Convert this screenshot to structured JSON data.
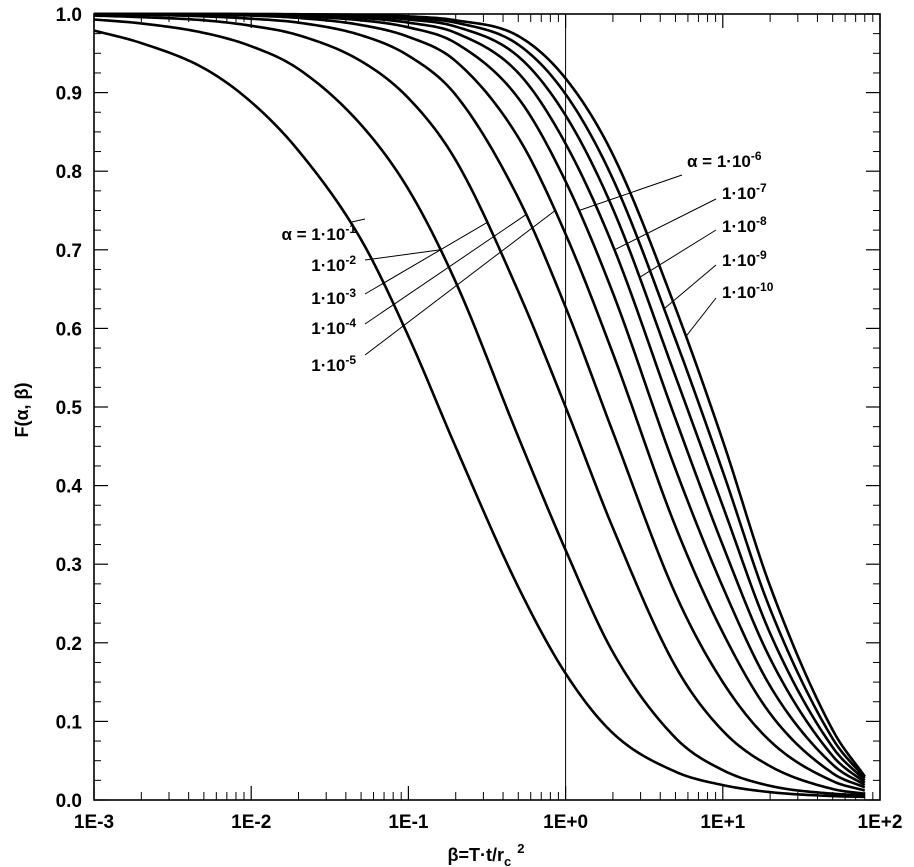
{
  "chart_data": {
    "type": "line",
    "xlabel": "β=T·t/r",
    "xlabel_sub": "c",
    "xlabel_sup": "2",
    "ylabel": "F(α, β)",
    "xscale": "log",
    "xlim": [
      0.001,
      100
    ],
    "ylim": [
      0.0,
      1.0
    ],
    "grid": false,
    "reference_line_x": 1,
    "x_ticks": [
      {
        "value": 0.001,
        "label": "1E-3"
      },
      {
        "value": 0.01,
        "label": "1E-2"
      },
      {
        "value": 0.1,
        "label": "1E-1"
      },
      {
        "value": 1,
        "label": "1E+0"
      },
      {
        "value": 10,
        "label": "1E+1"
      },
      {
        "value": 100,
        "label": "1E+2"
      }
    ],
    "y_ticks": [
      {
        "value": 0.0,
        "label": "0.0"
      },
      {
        "value": 0.1,
        "label": "0.1"
      },
      {
        "value": 0.2,
        "label": "0.2"
      },
      {
        "value": 0.3,
        "label": "0.3"
      },
      {
        "value": 0.4,
        "label": "0.4"
      },
      {
        "value": 0.5,
        "label": "0.5"
      },
      {
        "value": 0.6,
        "label": "0.6"
      },
      {
        "value": 0.7,
        "label": "0.7"
      },
      {
        "value": 0.8,
        "label": "0.8"
      },
      {
        "value": 0.9,
        "label": "0.9"
      },
      {
        "value": 1.0,
        "label": "1.0"
      }
    ],
    "x": [
      0.001,
      0.002,
      0.005,
      0.01,
      0.02,
      0.05,
      0.1,
      0.2,
      0.5,
      1,
      2,
      5,
      10,
      20,
      50,
      80
    ],
    "series": [
      {
        "prefix": "α = ",
        "base": "1·10",
        "exp": "-1",
        "values": [
          0.979,
          0.963,
          0.931,
          0.888,
          0.826,
          0.713,
          0.59,
          0.449,
          0.271,
          0.161,
          0.085,
          0.036,
          0.019,
          0.01,
          0.005,
          0.004
        ]
      },
      {
        "prefix": "",
        "base": "1·10",
        "exp": "-2",
        "values": [
          0.993,
          0.988,
          0.976,
          0.959,
          0.93,
          0.859,
          0.777,
          0.659,
          0.462,
          0.318,
          0.188,
          0.079,
          0.038,
          0.018,
          0.008,
          0.006
        ]
      },
      {
        "prefix": "",
        "base": "1·10",
        "exp": "-3",
        "values": [
          0.998,
          0.996,
          0.992,
          0.985,
          0.973,
          0.94,
          0.893,
          0.814,
          0.647,
          0.5,
          0.346,
          0.17,
          0.088,
          0.043,
          0.014,
          0.008
        ]
      },
      {
        "prefix": "",
        "base": "1·10",
        "exp": "-4",
        "values": [
          0.9995,
          0.999,
          0.997,
          0.994,
          0.989,
          0.973,
          0.947,
          0.897,
          0.766,
          0.627,
          0.468,
          0.262,
          0.15,
          0.075,
          0.024,
          0.012
        ]
      },
      {
        "prefix": "",
        "base": "1·10",
        "exp": "-5",
        "values": [
          1.0,
          0.9997,
          0.999,
          0.998,
          0.995,
          0.986,
          0.971,
          0.94,
          0.843,
          0.72,
          0.568,
          0.348,
          0.213,
          0.11,
          0.034,
          0.016
        ]
      },
      {
        "prefix": "α = ",
        "base": "1·10",
        "exp": "-6",
        "values": [
          1.0,
          1.0,
          0.9996,
          0.999,
          0.997,
          0.992,
          0.983,
          0.963,
          0.893,
          0.787,
          0.645,
          0.421,
          0.271,
          0.145,
          0.045,
          0.019
        ]
      },
      {
        "prefix": "",
        "base": "1·10",
        "exp": "-7",
        "values": [
          1.0,
          1.0,
          0.9998,
          0.9995,
          0.9985,
          0.995,
          0.989,
          0.976,
          0.925,
          0.835,
          0.705,
          0.485,
          0.324,
          0.18,
          0.056,
          0.022
        ]
      },
      {
        "prefix": "",
        "base": "1·10",
        "exp": "-8",
        "values": [
          1.0,
          1.0,
          1.0,
          0.9997,
          0.999,
          0.997,
          0.993,
          0.984,
          0.946,
          0.871,
          0.752,
          0.539,
          0.374,
          0.212,
          0.067,
          0.025
        ]
      },
      {
        "prefix": "",
        "base": "1·10",
        "exp": "-9",
        "values": [
          1.0,
          1.0,
          1.0,
          0.9998,
          0.9995,
          0.998,
          0.995,
          0.989,
          0.961,
          0.898,
          0.79,
          0.586,
          0.418,
          0.243,
          0.078,
          0.028
        ]
      },
      {
        "prefix": "",
        "base": "1·10",
        "exp": "-10",
        "values": [
          1.0,
          1.0,
          1.0,
          1.0,
          0.9997,
          0.9988,
          0.997,
          0.992,
          0.972,
          0.918,
          0.821,
          0.626,
          0.457,
          0.272,
          0.089,
          0.03
        ]
      }
    ]
  }
}
